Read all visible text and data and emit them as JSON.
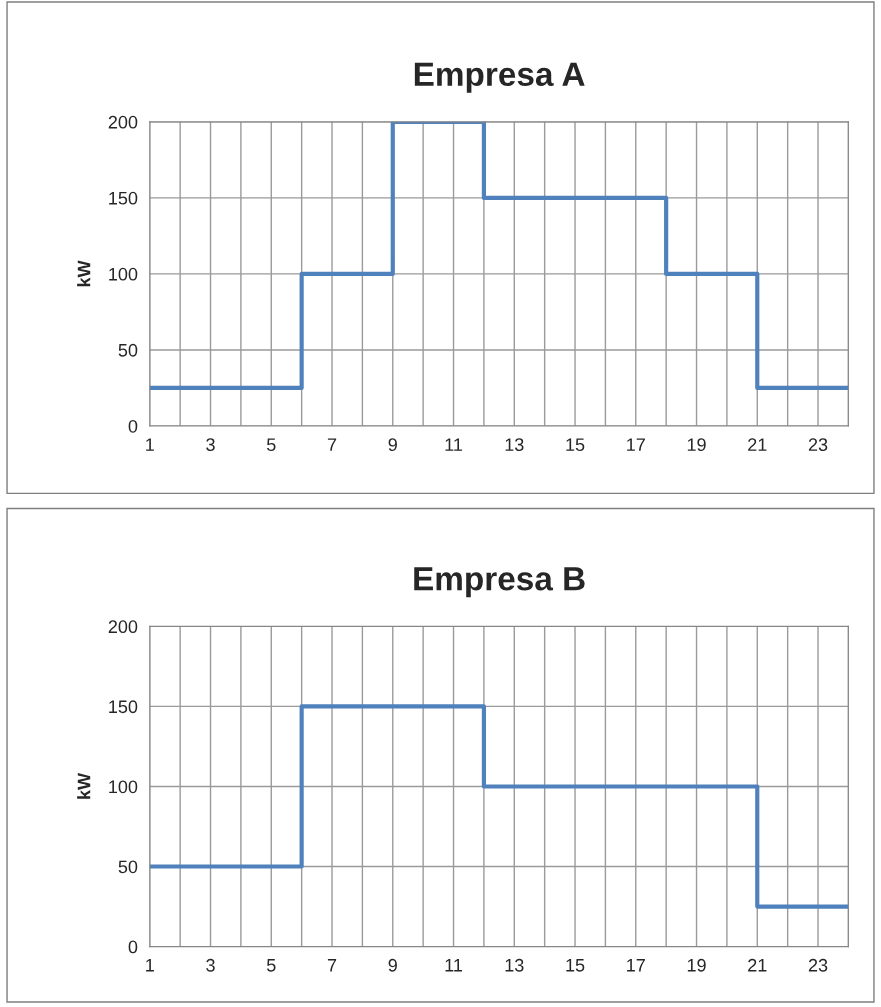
{
  "chart_data": [
    {
      "type": "step",
      "title": "Empresa A",
      "ylabel": "kW",
      "x": [
        1,
        2,
        3,
        4,
        5,
        6,
        7,
        8,
        9,
        10,
        11,
        12,
        13,
        14,
        15,
        16,
        17,
        18,
        19,
        20,
        21,
        22,
        23,
        24
      ],
      "series": [
        {
          "color": "#4f81bd",
          "values": [
            25,
            25,
            25,
            25,
            25,
            100,
            100,
            100,
            200,
            200,
            200,
            150,
            150,
            150,
            150,
            150,
            150,
            100,
            100,
            100,
            25,
            25,
            25,
            25
          ]
        }
      ],
      "xlim": [
        1,
        24
      ],
      "ylim": [
        0,
        200
      ],
      "yticks": [
        0,
        50,
        100,
        150,
        200
      ],
      "xticks": [
        1,
        {
          "value": 2,
          "label": null
        },
        3,
        {
          "value": 4,
          "label": null
        },
        5,
        {
          "value": 6,
          "label": null
        },
        7,
        {
          "value": 8,
          "label": null
        },
        9,
        {
          "value": 10,
          "label": null
        },
        11,
        {
          "value": 12,
          "label": null
        },
        13,
        {
          "value": 14,
          "label": null
        },
        15,
        {
          "value": 16,
          "label": null
        },
        17,
        {
          "value": 18,
          "label": null
        },
        19,
        {
          "value": 20,
          "label": null
        },
        21,
        {
          "value": 22,
          "label": null
        },
        23,
        {
          "value": 24,
          "label": null
        }
      ],
      "grid": true,
      "legend": false
    },
    {
      "type": "step",
      "title": "Empresa B",
      "ylabel": "kW",
      "x": [
        1,
        2,
        3,
        4,
        5,
        6,
        7,
        8,
        9,
        10,
        11,
        12,
        13,
        14,
        15,
        16,
        17,
        18,
        19,
        20,
        21,
        22,
        23,
        24
      ],
      "series": [
        {
          "color": "#4f81bd",
          "values": [
            50,
            50,
            50,
            50,
            50,
            150,
            150,
            150,
            150,
            150,
            150,
            100,
            100,
            100,
            100,
            100,
            100,
            100,
            100,
            100,
            25,
            25,
            25,
            25
          ]
        }
      ],
      "xlim": [
        1,
        24
      ],
      "ylim": [
        0,
        200
      ],
      "yticks": [
        0,
        50,
        100,
        150,
        200
      ],
      "xticks": [
        1,
        {
          "value": 2,
          "label": null
        },
        3,
        {
          "value": 4,
          "label": null
        },
        5,
        {
          "value": 6,
          "label": null
        },
        7,
        {
          "value": 8,
          "label": null
        },
        9,
        {
          "value": 10,
          "label": null
        },
        11,
        {
          "value": 12,
          "label": null
        },
        13,
        {
          "value": 14,
          "label": null
        },
        15,
        {
          "value": 16,
          "label": null
        },
        17,
        {
          "value": 18,
          "label": null
        },
        19,
        {
          "value": 20,
          "label": null
        },
        21,
        {
          "value": 22,
          "label": null
        },
        23,
        {
          "value": 24,
          "label": null
        }
      ],
      "grid": true,
      "legend": false
    }
  ]
}
